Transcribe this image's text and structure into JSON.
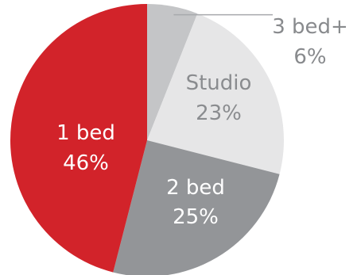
{
  "chart_data": {
    "type": "pie",
    "start_angle_deg": 0,
    "direction": "clockwise",
    "slices": [
      {
        "label": "3 bed+",
        "value": 6,
        "value_label": "6%",
        "color": "#c4c5c7",
        "text_color": "#888a8d",
        "label_mode": "leader"
      },
      {
        "label": "Studio",
        "value": 23,
        "value_label": "23%",
        "color": "#e6e6e7",
        "text_color": "#8a8c8f",
        "label_mode": "inside"
      },
      {
        "label": "2 bed",
        "value": 25,
        "value_label": "25%",
        "color": "#939598",
        "text_color": "#ffffff",
        "label_mode": "inside"
      },
      {
        "label": "1 bed",
        "value": 46,
        "value_label": "46%",
        "color": "#d2232a",
        "text_color": "#ffffff",
        "label_mode": "inside"
      }
    ]
  }
}
